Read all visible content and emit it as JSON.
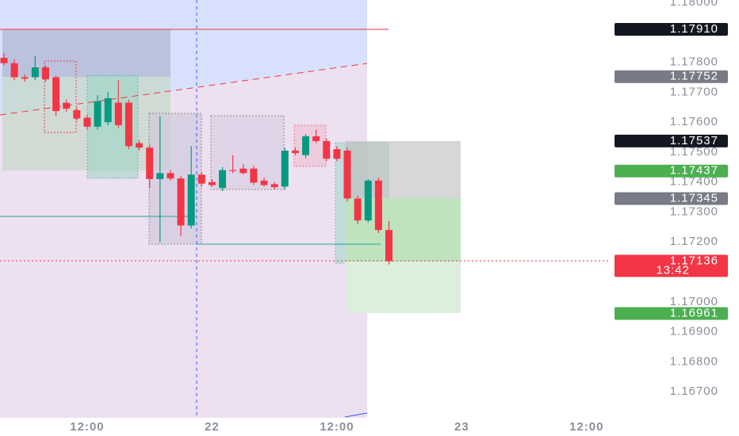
{
  "chart_data": {
    "type": "candlestick",
    "x": [
      -8,
      -7,
      -6,
      -5,
      -4,
      -3,
      -2,
      -1,
      0,
      1,
      2,
      3,
      4,
      5,
      6,
      7,
      8,
      9,
      10,
      11,
      12,
      13,
      14,
      15,
      16,
      17,
      18,
      19,
      20,
      21,
      22,
      23,
      24,
      25,
      26,
      27,
      28,
      29
    ],
    "open": [
      1.17815,
      1.17797,
      1.1775,
      1.1775,
      1.17783,
      1.1775,
      1.17665,
      1.1764,
      1.17615,
      1.17585,
      1.176,
      1.17665,
      1.17665,
      1.1753,
      1.17515,
      1.1741,
      1.1743,
      1.17412,
      1.17255,
      1.17425,
      1.174,
      1.1738,
      1.1744,
      1.17445,
      1.17445,
      1.17405,
      1.17393,
      1.17385,
      1.17505,
      1.1749,
      1.17553,
      1.17537,
      1.1751,
      1.17505,
      1.17345,
      1.17272,
      1.17405,
      1.1724
    ],
    "high": [
      1.1783,
      1.1781,
      1.1776,
      1.1782,
      1.1779,
      1.17755,
      1.17675,
      1.1765,
      1.17625,
      1.1769,
      1.177,
      1.1774,
      1.17675,
      1.1754,
      1.17525,
      1.1762,
      1.1744,
      1.1742,
      1.1752,
      1.17435,
      1.1741,
      1.1745,
      1.1749,
      1.1746,
      1.17455,
      1.17415,
      1.174,
      1.17515,
      1.17515,
      1.1756,
      1.17575,
      1.17545,
      1.1752,
      1.17515,
      1.17355,
      1.1741,
      1.17415,
      1.1727
    ],
    "low": [
      1.1779,
      1.1774,
      1.17735,
      1.1774,
      1.17735,
      1.1762,
      1.17635,
      1.17605,
      1.17575,
      1.17575,
      1.1759,
      1.1758,
      1.1751,
      1.17505,
      1.1738,
      1.172,
      1.17405,
      1.1722,
      1.17245,
      1.17385,
      1.17385,
      1.1737,
      1.1743,
      1.17425,
      1.1739,
      1.17385,
      1.17375,
      1.17375,
      1.1749,
      1.1748,
      1.1753,
      1.1747,
      1.1747,
      1.17335,
      1.1726,
      1.17265,
      1.1723,
      1.17125
    ],
    "close": [
      1.17797,
      1.1775,
      1.17745,
      1.17783,
      1.17743,
      1.17637,
      1.17645,
      1.17612,
      1.17585,
      1.1767,
      1.1768,
      1.1759,
      1.1752,
      1.17515,
      1.1741,
      1.1743,
      1.17412,
      1.17255,
      1.17425,
      1.17395,
      1.1739,
      1.1744,
      1.17437,
      1.1743,
      1.17398,
      1.1739,
      1.17383,
      1.17505,
      1.17497,
      1.17553,
      1.17537,
      1.17478,
      1.17478,
      1.17345,
      1.17272,
      1.17405,
      1.1724,
      1.17136
    ],
    "up_color": "#089981",
    "down_color": "#f23645",
    "xlim": [
      -8.38,
      50.3
    ],
    "xticks": [
      {
        "value": 0,
        "label": "12:00"
      },
      {
        "value": 12,
        "label": "22"
      },
      {
        "value": 24,
        "label": "12:00"
      },
      {
        "value": 36,
        "label": "23"
      },
      {
        "value": 48,
        "label": "12:00"
      }
    ],
    "ylim": [
      1.16613,
      1.18008
    ],
    "yticks": [
      {
        "value": 1.18,
        "label": "1.18000"
      },
      {
        "value": 1.178,
        "label": "1.17800"
      },
      {
        "value": 1.177,
        "label": "1.17700"
      },
      {
        "value": 1.176,
        "label": "1.17600"
      },
      {
        "value": 1.175,
        "label": "1.17500"
      },
      {
        "value": 1.174,
        "label": "1.17400"
      },
      {
        "value": 1.173,
        "label": "1.17300"
      },
      {
        "value": 1.172,
        "label": "1.17200"
      },
      {
        "value": 1.17,
        "label": "1.17000"
      },
      {
        "value": 1.169,
        "label": "1.16900"
      },
      {
        "value": 1.168,
        "label": "1.16800"
      },
      {
        "value": 1.167,
        "label": "1.16700"
      }
    ],
    "price_labels": {
      "values": [
        1.1791,
        1.17752,
        1.17537,
        1.17437,
        1.17345,
        1.17136,
        1.16961
      ],
      "value_labels": [
        "1.17910",
        "1.17752",
        "1.17537",
        "1.17437",
        "1.17345",
        "1.17136",
        "1.16961"
      ],
      "colors": [
        "#131722",
        "#787b86",
        "#131722",
        "#4caf50",
        "#787b86",
        "#f23645",
        "#4caf50"
      ]
    },
    "countdown": "13:42"
  }
}
